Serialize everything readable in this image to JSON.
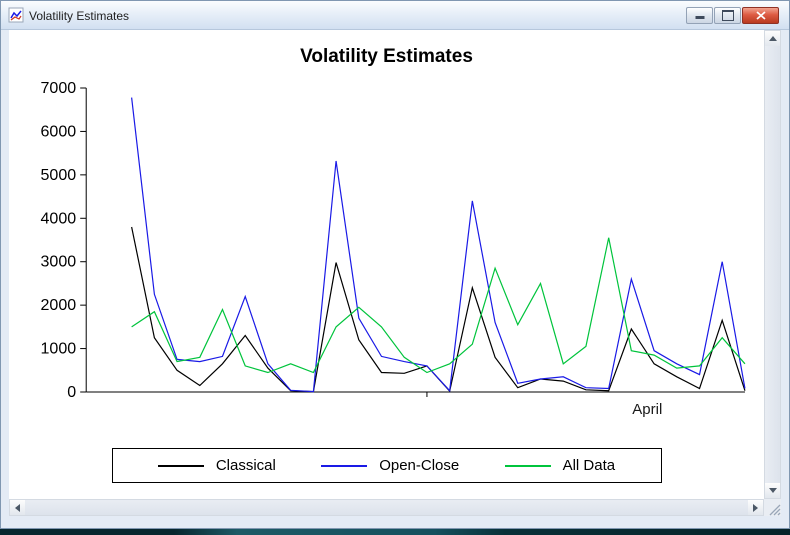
{
  "window": {
    "title": "Volatility Estimates"
  },
  "chart_data": {
    "type": "line",
    "title": "Volatility Estimates",
    "xlabel": "",
    "ylabel": "",
    "ylim": [
      0,
      7000
    ],
    "ytick_step": 1000,
    "ytick_labels": [
      "0",
      "1000",
      "2000",
      "3000",
      "4000",
      "5000",
      "6000",
      "7000"
    ],
    "x_axis_slots": 30,
    "x_data_start_index": 2,
    "x_ticks": [
      {
        "slot": 15,
        "label": "",
        "tick": true
      },
      {
        "slot": 24.7,
        "label": "April",
        "tick": false
      }
    ],
    "grid": false,
    "legend_position": "bottom",
    "series": [
      {
        "name": "Classical",
        "color": "#000000",
        "values": [
          3800,
          1250,
          500,
          150,
          650,
          1300,
          550,
          30,
          10,
          2980,
          1200,
          450,
          430,
          600,
          20,
          2400,
          800,
          100,
          300,
          250,
          50,
          30,
          1450,
          650,
          350,
          80,
          1650,
          30
        ]
      },
      {
        "name": "Open-Close",
        "color": "#1a1ae6",
        "values": [
          6780,
          2250,
          750,
          700,
          820,
          2200,
          650,
          40,
          10,
          5320,
          1700,
          820,
          700,
          600,
          30,
          4400,
          1600,
          200,
          300,
          350,
          100,
          80,
          2600,
          950,
          650,
          400,
          3000,
          80
        ]
      },
      {
        "name": "All Data",
        "color": "#00c43c",
        "values": [
          1500,
          1850,
          700,
          800,
          1900,
          600,
          450,
          650,
          450,
          1500,
          1950,
          1500,
          800,
          450,
          650,
          1100,
          2850,
          1550,
          2500,
          650,
          1050,
          3550,
          950,
          850,
          550,
          600,
          1250,
          650
        ]
      }
    ]
  }
}
